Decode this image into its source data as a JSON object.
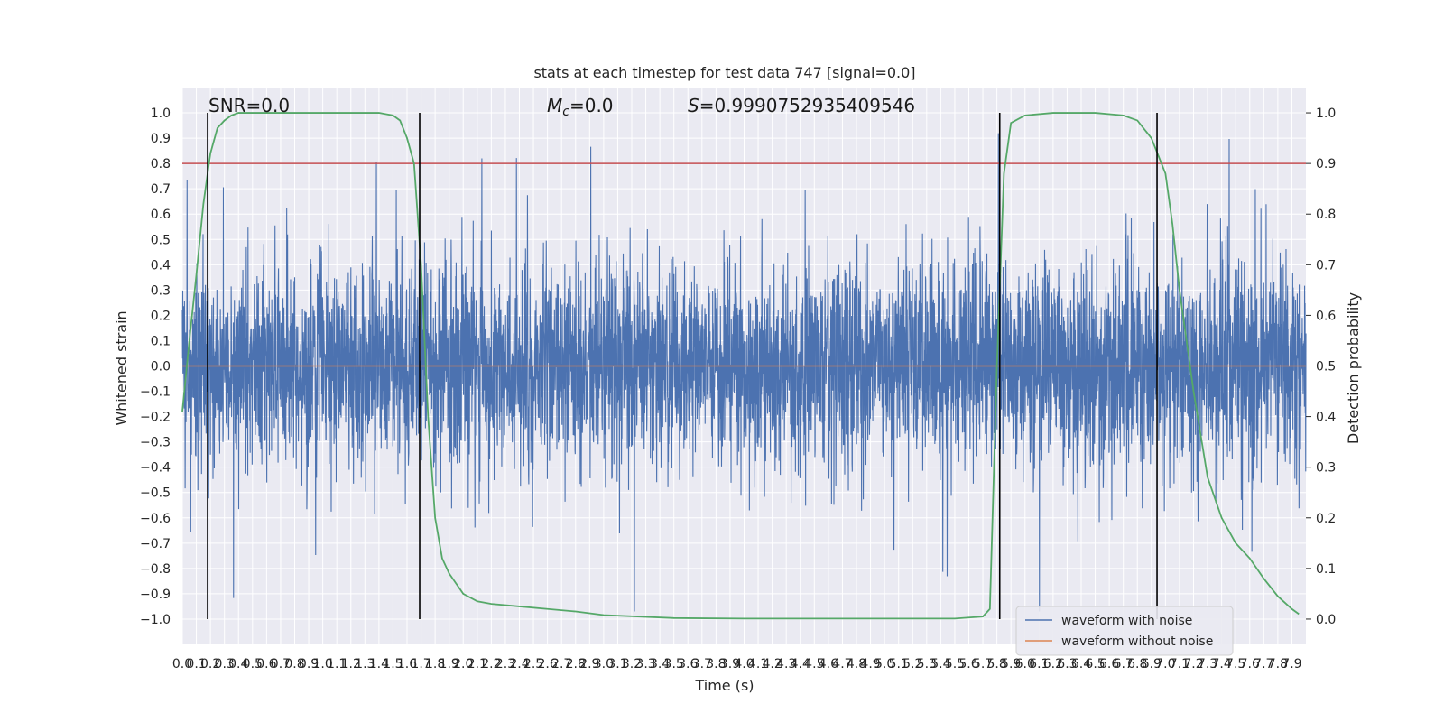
{
  "chart_data": {
    "type": "line",
    "title": "stats at each timestep for test data 747 [signal=0.0]",
    "xlabel": "Time (s)",
    "ylabel": "Whitened strain",
    "ylabel_right": "Detection probability",
    "xlim": [
      0.0,
      8.0
    ],
    "ylim": [
      -1.1,
      1.1
    ],
    "ylim_right": [
      -0.05,
      1.05
    ],
    "x_ticks": [
      "0.0",
      "0.1",
      "0.2",
      "0.3",
      "0.4",
      "0.5",
      "0.6",
      "0.7",
      "0.8",
      "0.9",
      "1.0",
      "1.1",
      "1.2",
      "1.3",
      "1.4",
      "1.5",
      "1.6",
      "1.7",
      "1.8",
      "1.9",
      "2.0",
      "2.1",
      "2.2",
      "2.3",
      "2.4",
      "2.5",
      "2.6",
      "2.7",
      "2.8",
      "2.9",
      "3.0",
      "3.1",
      "3.2",
      "3.3",
      "3.4",
      "3.5",
      "3.6",
      "3.7",
      "3.8",
      "3.9",
      "4.0",
      "4.1",
      "4.2",
      "4.3",
      "4.4",
      "4.5",
      "4.6",
      "4.7",
      "4.8",
      "4.9",
      "5.0",
      "5.1",
      "5.2",
      "5.3",
      "5.4",
      "5.5",
      "5.6",
      "5.7",
      "5.8",
      "5.9",
      "6.0",
      "6.1",
      "6.2",
      "6.3",
      "6.4",
      "6.5",
      "6.6",
      "6.7",
      "6.8",
      "6.9",
      "7.0",
      "7.1",
      "7.2",
      "7.3",
      "7.4",
      "7.5",
      "7.6",
      "7.7",
      "7.8",
      "7.9"
    ],
    "y_ticks_left": [
      "-1.0",
      "-0.9",
      "-0.8",
      "-0.7",
      "-0.6",
      "-0.5",
      "-0.4",
      "-0.3",
      "-0.2",
      "-0.1",
      "0.0",
      "0.1",
      "0.2",
      "0.3",
      "0.4",
      "0.5",
      "0.6",
      "0.7",
      "0.8",
      "0.9",
      "1.0"
    ],
    "y_ticks_right": [
      "0.0",
      "0.1",
      "0.2",
      "0.3",
      "0.4",
      "0.5",
      "0.6",
      "0.7",
      "0.8",
      "0.9",
      "1.0"
    ],
    "annotations": {
      "snr": "SNR=0.0",
      "mc": "=0.0",
      "mc_symbol": "M",
      "mc_subscript": "c",
      "s": "=0.9990752935409546",
      "s_symbol": "S"
    },
    "series": [
      {
        "name": "waveform with noise",
        "color": "#4c72b0",
        "style": "dense noise, amplitude approx ±0.2 core with spikes to ±1.0"
      },
      {
        "name": "waveform without noise",
        "color": "#dd8452",
        "values_constant": 0.0
      },
      {
        "name": "",
        "color": "#55a868",
        "axis": "right",
        "x": [
          0.0,
          0.05,
          0.1,
          0.15,
          0.2,
          0.25,
          0.3,
          0.35,
          0.4,
          0.45,
          0.5,
          0.6,
          0.8,
          1.0,
          1.2,
          1.4,
          1.5,
          1.55,
          1.6,
          1.65,
          1.7,
          1.75,
          1.8,
          1.85,
          1.9,
          2.0,
          2.1,
          2.2,
          2.4,
          2.6,
          2.8,
          3.0,
          3.5,
          4.0,
          4.5,
          5.0,
          5.5,
          5.7,
          5.75,
          5.8,
          5.85,
          5.9,
          6.0,
          6.2,
          6.5,
          6.7,
          6.8,
          6.9,
          7.0,
          7.05,
          7.1,
          7.2,
          7.3,
          7.4,
          7.5,
          7.6,
          7.7,
          7.8,
          7.9,
          7.95
        ],
        "y": [
          0.41,
          0.55,
          0.68,
          0.82,
          0.92,
          0.97,
          0.985,
          0.995,
          1.0,
          1.0,
          1.0,
          1.0,
          1.0,
          1.0,
          1.0,
          1.0,
          0.995,
          0.985,
          0.95,
          0.9,
          0.7,
          0.4,
          0.2,
          0.12,
          0.09,
          0.05,
          0.035,
          0.03,
          0.025,
          0.02,
          0.015,
          0.008,
          0.002,
          0.001,
          0.001,
          0.001,
          0.001,
          0.005,
          0.02,
          0.5,
          0.88,
          0.98,
          0.995,
          1.0,
          1.0,
          0.995,
          0.985,
          0.95,
          0.88,
          0.78,
          0.65,
          0.45,
          0.28,
          0.2,
          0.15,
          0.12,
          0.08,
          0.045,
          0.02,
          0.01
        ]
      },
      {
        "name": "",
        "color": "#c44e52",
        "axis": "left",
        "values_constant": 0.8,
        "style": "threshold"
      }
    ],
    "vlines": [
      0.18,
      1.69,
      5.82,
      6.94
    ],
    "legend": {
      "placement": "lower-right",
      "entries": [
        "waveform with noise",
        "waveform without noise"
      ]
    },
    "grid": true,
    "colors": {
      "background": "#eaeaf2",
      "grid": "#ffffff",
      "noise": "#4c72b0",
      "clean": "#dd8452",
      "probability": "#55a868",
      "threshold": "#c44e52",
      "vline": "#000000"
    }
  }
}
